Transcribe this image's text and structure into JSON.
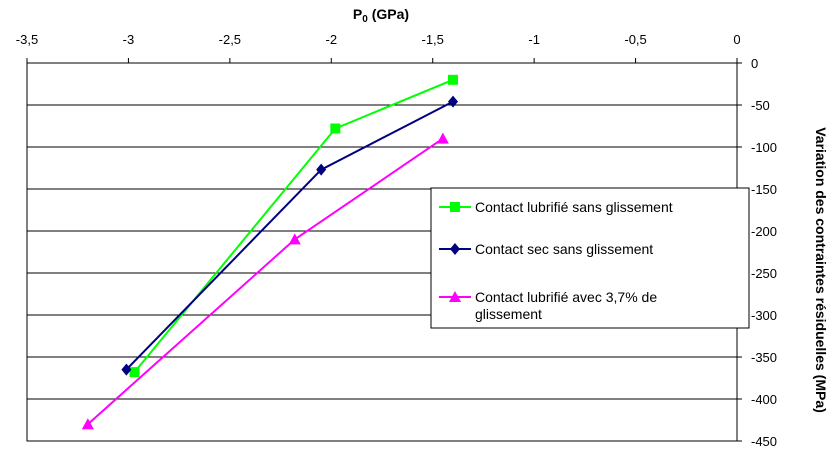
{
  "chart_data": {
    "type": "line",
    "xlabel": "P0 (GPa)",
    "xlabel_main": "P",
    "xlabel_sub": "0",
    "xlabel_rest": " (GPa)",
    "ylabel": "Variation des contraintes résiduelles (MPa)",
    "xlim": [
      -3.5,
      0
    ],
    "ylim": [
      -450,
      0
    ],
    "x_axis_position": "top",
    "y_axis_position": "right",
    "x_ticks": [
      -3.5,
      -3,
      -2.5,
      -2,
      -1.5,
      -1,
      -0.5,
      0
    ],
    "x_tick_labels": [
      "-3,5",
      "-3",
      "-2,5",
      "-2",
      "-1,5",
      "-1",
      "-0,5",
      "0"
    ],
    "y_ticks": [
      0,
      -50,
      -100,
      -150,
      -200,
      -250,
      -300,
      -350,
      -400,
      -450
    ],
    "y_tick_labels": [
      "0",
      "-50",
      "-100",
      "-150",
      "-200",
      "-250",
      "-300",
      "-350",
      "-400",
      "-450"
    ],
    "grid": "horizontal",
    "legend_position": "right",
    "series": [
      {
        "name": "Contact lubrifié sans glissement",
        "color": "#00ff00",
        "marker": "square",
        "x": [
          -2.97,
          -1.98,
          -1.4
        ],
        "y": [
          -368,
          -78,
          -20
        ]
      },
      {
        "name": "Contact sec sans glissement",
        "color": "#000080",
        "marker": "diamond",
        "x": [
          -3.01,
          -2.05,
          -1.4
        ],
        "y": [
          -365,
          -127,
          -46
        ]
      },
      {
        "name_line1": "Contact lubrifié avec 3,7% de",
        "name_line2": "glissement",
        "color": "#ff00ff",
        "marker": "triangle",
        "x": [
          -3.2,
          -2.18,
          -1.45
        ],
        "y": [
          -430,
          -210,
          -90
        ]
      }
    ]
  }
}
